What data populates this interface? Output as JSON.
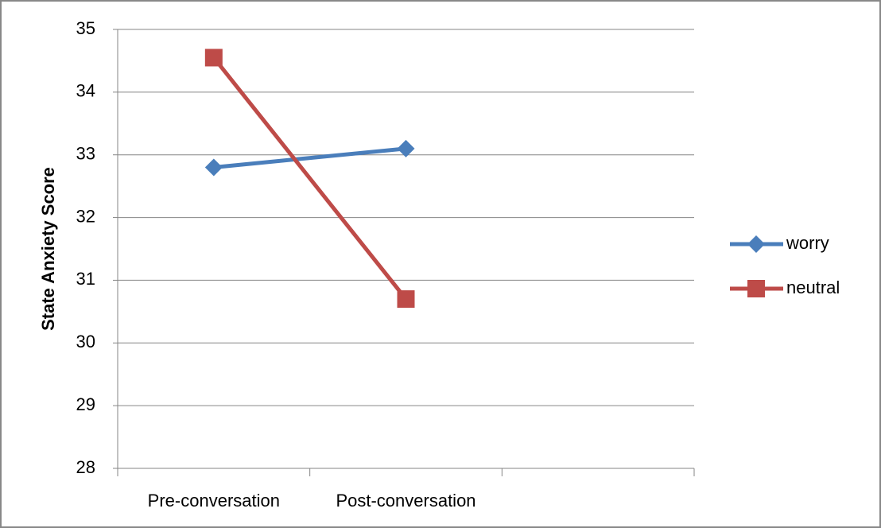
{
  "chart_data": {
    "type": "line",
    "y_label": "State Anxiety Score",
    "categories": [
      "Pre-conversation",
      "Post-conversation",
      null
    ],
    "series": [
      {
        "name": "worry",
        "color": "#4a7ebb",
        "marker": "diamond",
        "values": [
          32.8,
          33.1,
          null
        ]
      },
      {
        "name": "neutral",
        "color": "#be4b48",
        "marker": "square",
        "values": [
          34.55,
          30.7,
          null
        ]
      }
    ],
    "ylim": [
      28,
      35
    ],
    "yticks": [
      28,
      29,
      30,
      31,
      32,
      33,
      34,
      35
    ],
    "grid": true,
    "legend": "right"
  }
}
